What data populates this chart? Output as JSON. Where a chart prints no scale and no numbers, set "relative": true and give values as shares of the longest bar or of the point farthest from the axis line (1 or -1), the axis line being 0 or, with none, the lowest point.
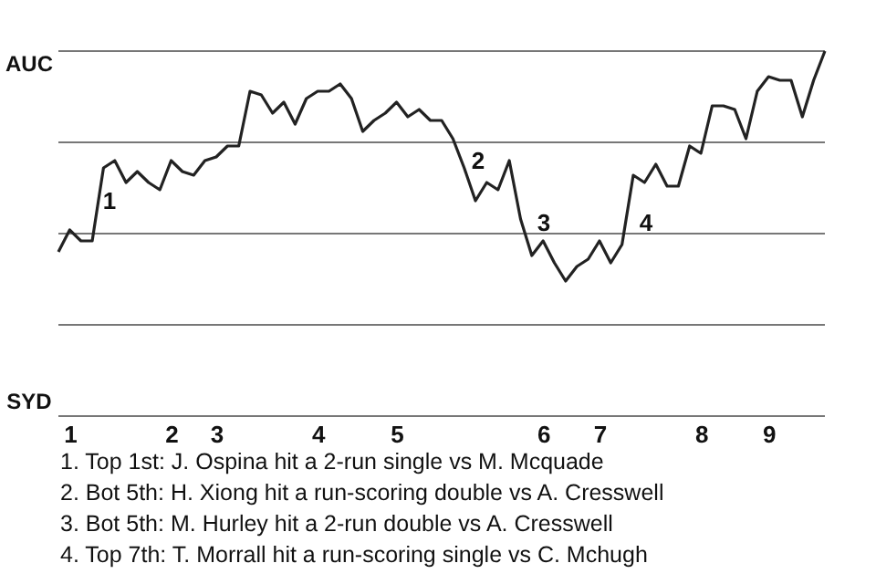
{
  "chart_data": {
    "type": "line",
    "categories": [
      null,
      "1",
      null,
      null,
      null,
      null,
      null,
      null,
      null,
      null,
      "2",
      null,
      null,
      null,
      "3",
      null,
      null,
      null,
      null,
      null,
      null,
      null,
      null,
      "4",
      null,
      null,
      null,
      null,
      null,
      null,
      "5",
      null,
      null,
      null,
      null,
      null,
      null,
      null,
      null,
      null,
      null,
      null,
      null,
      "6",
      null,
      null,
      null,
      null,
      "7",
      null,
      null,
      null,
      null,
      null,
      null,
      null,
      null,
      "8",
      null,
      null,
      null,
      null,
      null,
      "9",
      null,
      null,
      null,
      null,
      null
    ],
    "series": [
      {
        "color": "#222222",
        "values": [
          0.45,
          0.51,
          0.48,
          0.48,
          0.68,
          0.7,
          0.64,
          0.67,
          0.64,
          0.62,
          0.7,
          0.67,
          0.66,
          0.7,
          0.71,
          0.74,
          0.74,
          0.89,
          0.88,
          0.83,
          0.86,
          0.8,
          0.87,
          0.89,
          0.89,
          0.91,
          0.87,
          0.78,
          0.81,
          0.83,
          0.86,
          0.82,
          0.84,
          0.81,
          0.81,
          0.76,
          0.68,
          0.59,
          0.64,
          0.62,
          0.7,
          0.54,
          0.44,
          0.48,
          0.42,
          0.37,
          0.41,
          0.43,
          0.48,
          0.42,
          0.47,
          0.66,
          0.64,
          0.69,
          0.63,
          0.63,
          0.74,
          0.72,
          0.85,
          0.85,
          0.84,
          0.76,
          0.89,
          0.93,
          0.92,
          0.92,
          0.82,
          0.92,
          1
        ]
      }
    ],
    "relative": true,
    "ref_lines": [
      {
        "axis": "y",
        "value": 0,
        "color": "#777777"
      },
      {
        "axis": "y",
        "value": 0.25,
        "color": "#777777"
      },
      {
        "axis": "y",
        "value": 0.5,
        "color": "#777777"
      },
      {
        "axis": "y",
        "value": 0.75,
        "color": "#777777"
      },
      {
        "axis": "y",
        "value": 1,
        "color": "#777777"
      }
    ],
    "annotations": [
      "1",
      "2",
      "3",
      "4",
      "AUC",
      "SYD",
      "1. Top 1st: J. Ospina hit a 2-run single vs M. Mcquade",
      "2. Bot 5th: H. Xiong hit a run-scoring double vs A. Cresswell",
      "3. Bot 5th: M. Hurley hit a 2-run double vs A. Cresswell",
      "4. Top 7th: T. Morrall hit a run-scoring single vs C. Mchugh"
    ]
  }
}
